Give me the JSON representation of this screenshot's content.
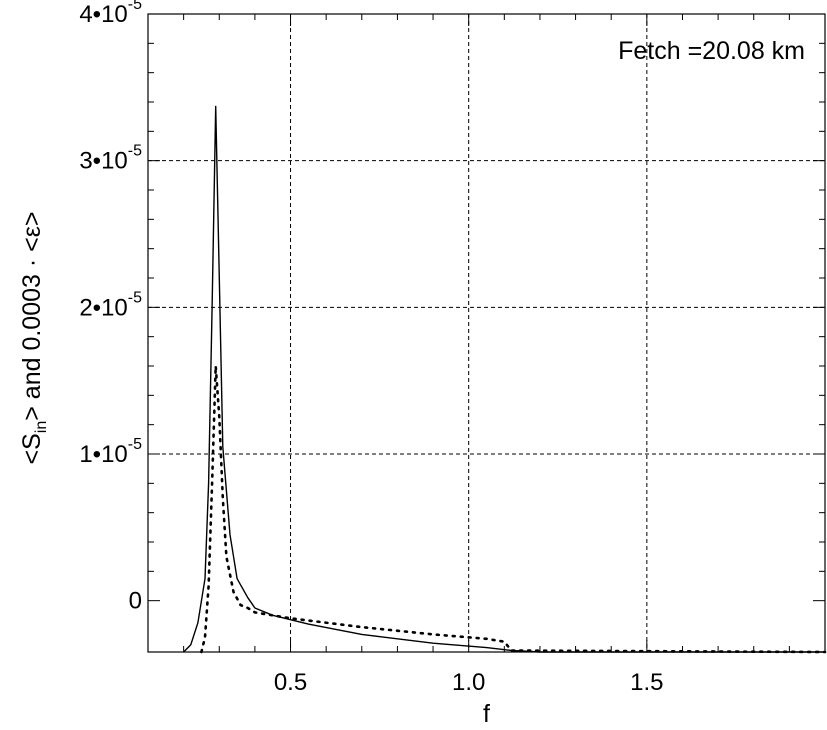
{
  "chart_data": {
    "type": "line",
    "title": "",
    "xlabel": "f",
    "ylabel": {
      "prefix": "<S",
      "subscript": "in",
      "suffix": "> and 0.0003 · <ε>"
    },
    "annotation": "Fetch =20.08 km",
    "xlim": [
      0.1,
      2.0
    ],
    "ylim": [
      -3.5e-06,
      4e-05
    ],
    "grid": true,
    "x_ticks": [
      {
        "value": 0.5,
        "label": "0.5"
      },
      {
        "value": 1.0,
        "label": "1.0"
      },
      {
        "value": 1.5,
        "label": "1.5"
      }
    ],
    "y_ticks": [
      {
        "value": 0,
        "mantissa": "0",
        "exponent": ""
      },
      {
        "value": 1e-05,
        "mantissa": "1•10",
        "exponent": "-5"
      },
      {
        "value": 2e-05,
        "mantissa": "2•10",
        "exponent": "-5"
      },
      {
        "value": 3e-05,
        "mantissa": "3•10",
        "exponent": "-5"
      },
      {
        "value": 4e-05,
        "mantissa": "4•10",
        "exponent": "-5"
      }
    ],
    "series": [
      {
        "style": "solid",
        "points": [
          [
            0.2,
            -3.5e-06
          ],
          [
            0.22,
            -3e-06
          ],
          [
            0.24,
            -1.5e-06
          ],
          [
            0.26,
            1.5e-06
          ],
          [
            0.27,
            8e-06
          ],
          [
            0.28,
            2e-05
          ],
          [
            0.29,
            3.37e-05
          ],
          [
            0.3,
            2.2e-05
          ],
          [
            0.31,
            1.05e-05
          ],
          [
            0.33,
            4.5e-06
          ],
          [
            0.35,
            1.5e-06
          ],
          [
            0.38,
            2e-07
          ],
          [
            0.4,
            -5e-07
          ],
          [
            0.45,
            -1e-06
          ],
          [
            0.55,
            -1.6e-06
          ],
          [
            0.7,
            -2.3e-06
          ],
          [
            0.9,
            -2.9e-06
          ],
          [
            1.05,
            -3.2e-06
          ],
          [
            1.12,
            -3.4e-06
          ],
          [
            1.2,
            -3.5e-06
          ],
          [
            2.0,
            -3.5e-06
          ]
        ]
      },
      {
        "style": "dotted",
        "points": [
          [
            0.25,
            -3.5e-06
          ],
          [
            0.26,
            -2.5e-06
          ],
          [
            0.27,
            1e-06
          ],
          [
            0.28,
            8e-06
          ],
          [
            0.29,
            1.6e-05
          ],
          [
            0.3,
            1.25e-05
          ],
          [
            0.31,
            7e-06
          ],
          [
            0.32,
            3e-06
          ],
          [
            0.34,
            6e-07
          ],
          [
            0.36,
            -3e-07
          ],
          [
            0.38,
            -5e-07
          ],
          [
            0.4,
            -8e-07
          ],
          [
            0.5,
            -1.2e-06
          ],
          [
            0.7,
            -1.8e-06
          ],
          [
            0.9,
            -2.3e-06
          ],
          [
            1.05,
            -2.6e-06
          ],
          [
            1.1,
            -2.8e-06
          ],
          [
            1.12,
            -3.4e-06
          ],
          [
            2.0,
            -3.5e-06
          ]
        ]
      }
    ]
  }
}
